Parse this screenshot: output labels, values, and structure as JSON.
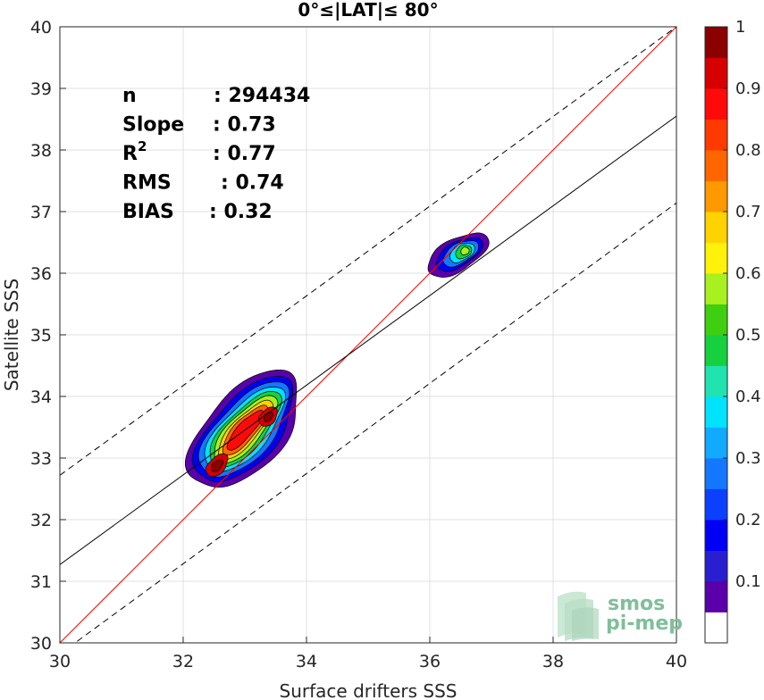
{
  "chart_data": {
    "type": "heatmap",
    "subtype": "scatter density contour",
    "title": "0°≤|LAT|≤ 80°",
    "xlabel": "Surface drifters SSS",
    "ylabel": "Satellite SSS",
    "xlim": [
      30,
      40
    ],
    "ylim": [
      30,
      40
    ],
    "xticks": [
      30,
      32,
      34,
      36,
      38,
      40
    ],
    "yticks": [
      30,
      31,
      32,
      33,
      34,
      35,
      36,
      37,
      38,
      39,
      40
    ],
    "grid": true,
    "stats": [
      {
        "label": "n",
        "value": ": 294434"
      },
      {
        "label": "Slope",
        "value": ": 0.73"
      },
      {
        "label": "R",
        "sup": "2",
        "value": ": 0.77"
      },
      {
        "label": "RMS",
        "value": ": 0.74"
      },
      {
        "label": "BIAS",
        "value": ": 0.32"
      }
    ],
    "lines": {
      "identity": {
        "x": [
          30,
          40
        ],
        "y": [
          30,
          40
        ],
        "color": "#ff0000"
      },
      "regression": {
        "x": [
          30,
          40
        ],
        "y": [
          31.27,
          38.55
        ],
        "color": "#000000"
      },
      "upper_bound": {
        "x": [
          30,
          40
        ],
        "y": [
          32.72,
          40.0
        ],
        "color": "#000000",
        "style": "dashed"
      },
      "lower_bound": {
        "x": [
          30,
          40
        ],
        "y": [
          29.82,
          37.14
        ],
        "color": "#000000",
        "style": "dashed"
      }
    },
    "clusters": [
      {
        "center": [
          33.0,
          33.45
        ],
        "angle_deg": 48,
        "levels": [
          {
            "level": 0.05,
            "a": 1.15,
            "b": 0.62
          },
          {
            "level": 0.15,
            "a": 1.05,
            "b": 0.52
          },
          {
            "level": 0.25,
            "a": 0.96,
            "b": 0.44
          },
          {
            "level": 0.35,
            "a": 0.87,
            "b": 0.37
          },
          {
            "level": 0.45,
            "a": 0.79,
            "b": 0.31
          },
          {
            "level": 0.55,
            "a": 0.71,
            "b": 0.26
          },
          {
            "level": 0.65,
            "a": 0.62,
            "b": 0.21
          },
          {
            "level": 0.75,
            "a": 0.52,
            "b": 0.17
          },
          {
            "level": 0.85,
            "a": 0.42,
            "b": 0.12
          }
        ],
        "peaks": [
          {
            "center": [
              32.55,
              32.88
            ],
            "levels": [
              {
                "level": 0.9,
                "a": 0.22,
                "b": 0.13
              },
              {
                "level": 0.95,
                "a": 0.12,
                "b": 0.07
              }
            ]
          },
          {
            "center": [
              33.38,
              33.67
            ],
            "levels": [
              {
                "level": 0.9,
                "a": 0.18,
                "b": 0.12
              },
              {
                "level": 0.95,
                "a": 0.09,
                "b": 0.06
              }
            ]
          }
        ]
      },
      {
        "center": [
          36.45,
          36.3
        ],
        "angle_deg": 30,
        "levels": [
          {
            "level": 0.05,
            "a": 0.55,
            "b": 0.26
          },
          {
            "level": 0.15,
            "a": 0.42,
            "b": 0.2
          },
          {
            "level": 0.25,
            "a": 0.32,
            "b": 0.16
          },
          {
            "level": 0.35,
            "a": 0.22,
            "b": 0.13
          },
          {
            "level": 0.45,
            "a": 0.14,
            "b": 0.1
          },
          {
            "level": 0.55,
            "a": 0.07,
            "b": 0.06
          }
        ],
        "center_shift": [
          0.12,
          0.06
        ]
      }
    ],
    "colorbar": {
      "ticks": [
        0.1,
        0.2,
        0.3,
        0.4,
        0.5,
        0.6,
        0.7,
        0.8,
        0.9,
        1
      ],
      "tick_labels": [
        "0.1",
        "0.2",
        "0.3",
        "0.4",
        "0.5",
        "0.6",
        "0.7",
        "0.8",
        "0.9",
        "1"
      ],
      "colors": [
        "#ffffff",
        "#5a00aa",
        "#2a1fd0",
        "#0000f5",
        "#0b40ff",
        "#1477ff",
        "#12aaff",
        "#00e3ff",
        "#20e3b0",
        "#16d040",
        "#3fcf10",
        "#a8f020",
        "#fff20a",
        "#ffd200",
        "#ff9900",
        "#ff6600",
        "#ff3a00",
        "#ff0a0a",
        "#d60000",
        "#8b0000"
      ]
    },
    "watermark": [
      "smos",
      "pi-mep"
    ]
  }
}
